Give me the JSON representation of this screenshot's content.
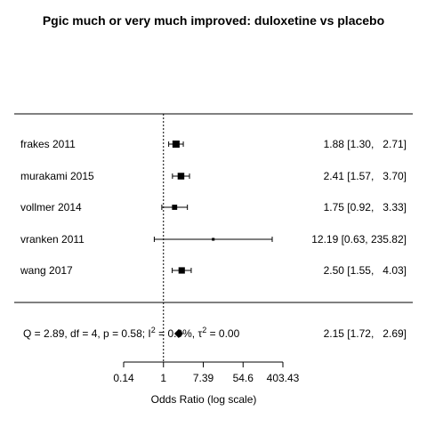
{
  "chart_data": {
    "type": "forest",
    "title": "Pgic much or very much improved: duloxetine vs placebo",
    "xlabel": "Odds Ratio (log scale)",
    "xscale": "log",
    "xlim": [
      0.1353,
      403.43
    ],
    "reference_line": 1,
    "xticks": [
      0.1353,
      1,
      7.389,
      54.6,
      403.43
    ],
    "xtick_labels": [
      "0.14",
      "1",
      "7.39",
      "54.6",
      "403.43"
    ],
    "studies": [
      {
        "label": "frakes 2011",
        "or": 1.88,
        "lo": 1.3,
        "hi": 2.71,
        "ci_text": "1.88 [1.30,   2.71]",
        "weight": 0.3
      },
      {
        "label": "murakami 2015",
        "or": 2.41,
        "lo": 1.57,
        "hi": 3.7,
        "ci_text": "2.41 [1.57,   3.70]",
        "weight": 0.25
      },
      {
        "label": "vollmer 2014",
        "or": 1.75,
        "lo": 0.92,
        "hi": 3.33,
        "ci_text": "1.75 [0.92,   3.33]",
        "weight": 0.12
      },
      {
        "label": "vranken 2011",
        "or": 12.19,
        "lo": 0.63,
        "hi": 235.82,
        "ci_text": "12.19 [0.63, 235.82]",
        "weight": 0.01
      },
      {
        "label": "wang 2017",
        "or": 2.5,
        "lo": 1.55,
        "hi": 4.03,
        "ci_text": "2.50 [1.55,   4.03]",
        "weight": 0.22
      }
    ],
    "summary": {
      "or": 2.15,
      "lo": 1.72,
      "hi": 2.69,
      "ci_text": "2.15 [1.72,   2.69]",
      "heterogeneity": {
        "q_prefix": "Q = 2.89, df = 4, p = 0.58; I",
        "i2_value": " = 0.0%, τ",
        "tau2_value": " = 0.00",
        "sup": "2"
      }
    }
  }
}
